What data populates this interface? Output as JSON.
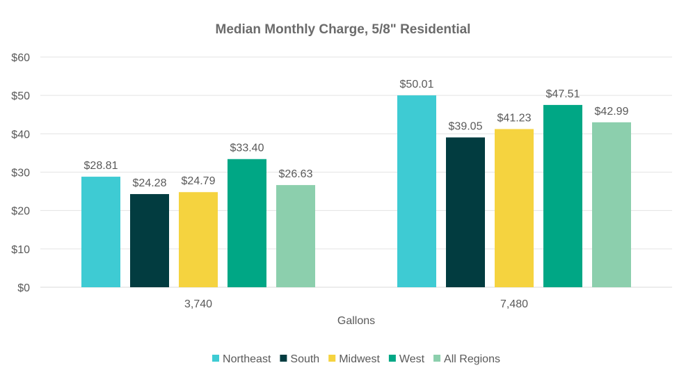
{
  "chart_data": {
    "type": "bar",
    "title": "Median Monthly Charge, 5/8\" Residential",
    "xlabel": "Gallons",
    "ylabel": "",
    "categories": [
      "3,740",
      "7,480"
    ],
    "ylim": [
      0,
      60
    ],
    "yticks": [
      0,
      10,
      20,
      30,
      40,
      50,
      60
    ],
    "ytick_labels": [
      "$0",
      "$10",
      "$20",
      "$30",
      "$40",
      "$50",
      "$60"
    ],
    "grid": true,
    "legend_position": "bottom",
    "series": [
      {
        "name": "Northeast",
        "color": "#3ecbd3",
        "values": [
          28.81,
          50.01
        ],
        "labels": [
          "$28.81",
          "$50.01"
        ]
      },
      {
        "name": "South",
        "color": "#023c40",
        "values": [
          24.28,
          39.05
        ],
        "labels": [
          "$24.28",
          "$39.05"
        ]
      },
      {
        "name": "Midwest",
        "color": "#f5d33f",
        "values": [
          24.79,
          41.23
        ],
        "labels": [
          "$24.79",
          "$41.23"
        ]
      },
      {
        "name": "West",
        "color": "#00a785",
        "values": [
          33.4,
          47.51
        ],
        "labels": [
          "$33.40",
          "$47.51"
        ]
      },
      {
        "name": "All Regions",
        "color": "#8ccfad",
        "values": [
          26.63,
          42.99
        ],
        "labels": [
          "$26.63",
          "$42.99"
        ]
      }
    ]
  }
}
